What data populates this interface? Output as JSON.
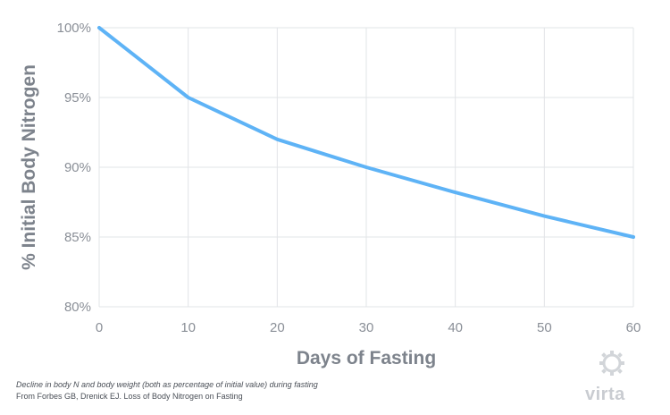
{
  "chart_data": {
    "type": "line",
    "x": [
      0,
      10,
      20,
      30,
      40,
      50,
      60
    ],
    "series": [
      {
        "values": [
          100,
          95,
          92,
          90,
          88.2,
          86.5,
          85
        ]
      }
    ],
    "xlabel": "Days of Fasting",
    "ylabel": "% Initial Body Nitrogen",
    "xlim": [
      0,
      60
    ],
    "ylim": [
      80,
      100
    ],
    "x_ticks": [
      "0",
      "10",
      "20",
      "30",
      "40",
      "50",
      "60"
    ],
    "y_ticks": [
      "80%",
      "85%",
      "90%",
      "95%",
      "100%"
    ],
    "grid": true,
    "line_color": "#5eb3f6",
    "grid_color": "#e2e4e7"
  },
  "caption": {
    "line1": "Decline in body N and body weight (both as percentage of initial value) during fasting",
    "line2": "From Forbes GB, Drenick EJ. Loss of Body Nitrogen on Fasting"
  },
  "brand": {
    "name": "virta",
    "icon": "gear-icon"
  }
}
